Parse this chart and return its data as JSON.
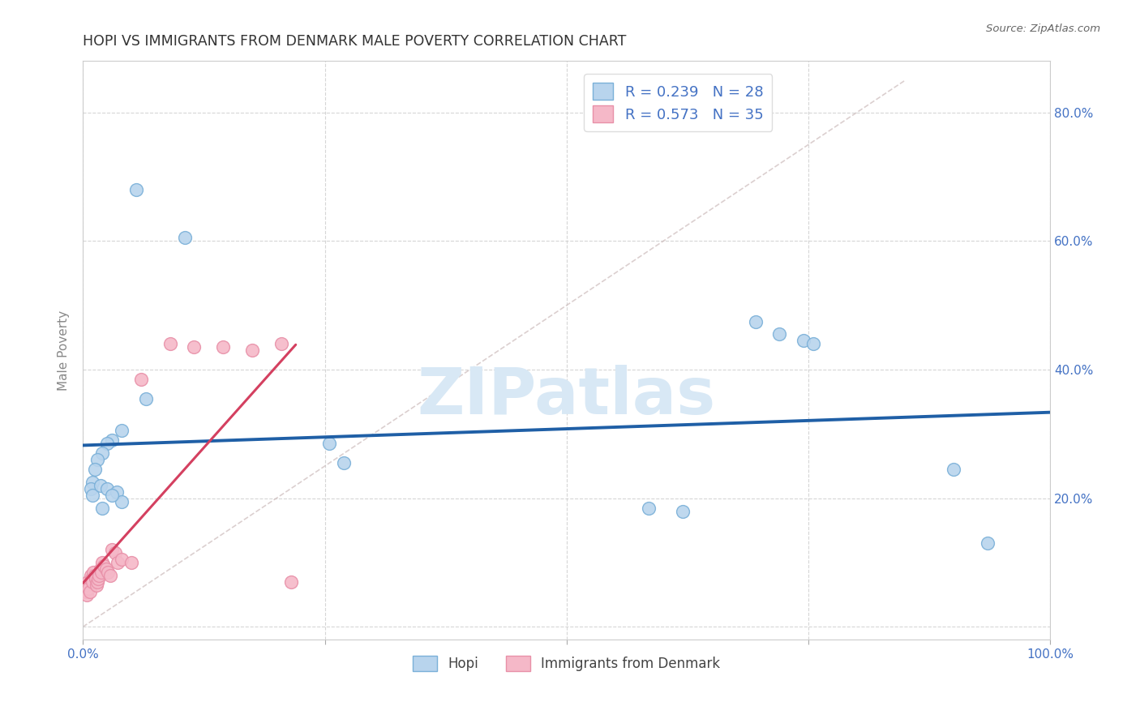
{
  "title": "HOPI VS IMMIGRANTS FROM DENMARK MALE POVERTY CORRELATION CHART",
  "source": "Source: ZipAtlas.com",
  "ylabel": "Male Poverty",
  "xlim": [
    0.0,
    1.0
  ],
  "ylim": [
    -0.02,
    0.88
  ],
  "ytick_vals": [
    0.0,
    0.2,
    0.4,
    0.6,
    0.8
  ],
  "ytick_labels": [
    "",
    "20.0%",
    "40.0%",
    "60.0%",
    "80.0%"
  ],
  "xtick_vals": [
    0.0,
    0.25,
    0.5,
    0.75,
    1.0
  ],
  "xtick_labels": [
    "0.0%",
    "",
    "",
    "",
    "100.0%"
  ],
  "legend_r_labels": [
    "R = 0.239",
    "R = 0.573"
  ],
  "legend_n_labels": [
    "N = 28",
    "N = 35"
  ],
  "hopi_color_fill": "#b8d4ed",
  "hopi_color_edge": "#7ab0d8",
  "denmark_color_fill": "#f5b8c8",
  "denmark_color_edge": "#e890a8",
  "hopi_trend_color": "#1f5fa6",
  "denmark_trend_color": "#d44060",
  "ref_line_color": "#ccbbbb",
  "grid_color": "#cccccc",
  "background_color": "#ffffff",
  "tick_color": "#4472c4",
  "ylabel_color": "#888888",
  "hopi_x": [
    0.055,
    0.105,
    0.065,
    0.04,
    0.03,
    0.025,
    0.02,
    0.015,
    0.012,
    0.01,
    0.008,
    0.01,
    0.018,
    0.025,
    0.035,
    0.04,
    0.03,
    0.02,
    0.255,
    0.27,
    0.585,
    0.62,
    0.695,
    0.72,
    0.745,
    0.755,
    0.9,
    0.935
  ],
  "hopi_y": [
    0.68,
    0.605,
    0.355,
    0.305,
    0.29,
    0.285,
    0.27,
    0.26,
    0.245,
    0.225,
    0.215,
    0.205,
    0.22,
    0.215,
    0.21,
    0.195,
    0.205,
    0.185,
    0.285,
    0.255,
    0.185,
    0.18,
    0.475,
    0.455,
    0.445,
    0.44,
    0.245,
    0.13
  ],
  "denmark_x": [
    0.002,
    0.003,
    0.004,
    0.005,
    0.006,
    0.007,
    0.008,
    0.009,
    0.01,
    0.011,
    0.012,
    0.013,
    0.014,
    0.015,
    0.016,
    0.017,
    0.018,
    0.019,
    0.02,
    0.022,
    0.024,
    0.026,
    0.028,
    0.03,
    0.033,
    0.036,
    0.04,
    0.05,
    0.06,
    0.09,
    0.115,
    0.145,
    0.175,
    0.205,
    0.215
  ],
  "denmark_y": [
    0.065,
    0.055,
    0.05,
    0.07,
    0.06,
    0.055,
    0.08,
    0.075,
    0.07,
    0.085,
    0.08,
    0.075,
    0.065,
    0.07,
    0.075,
    0.08,
    0.09,
    0.085,
    0.1,
    0.095,
    0.09,
    0.085,
    0.08,
    0.12,
    0.115,
    0.1,
    0.105,
    0.1,
    0.385,
    0.44,
    0.435,
    0.435,
    0.43,
    0.44,
    0.07
  ],
  "watermark_text": "ZIPatlas",
  "watermark_color": "#d8e8f5",
  "bottom_legend_labels": [
    "Hopi",
    "Immigrants from Denmark"
  ]
}
